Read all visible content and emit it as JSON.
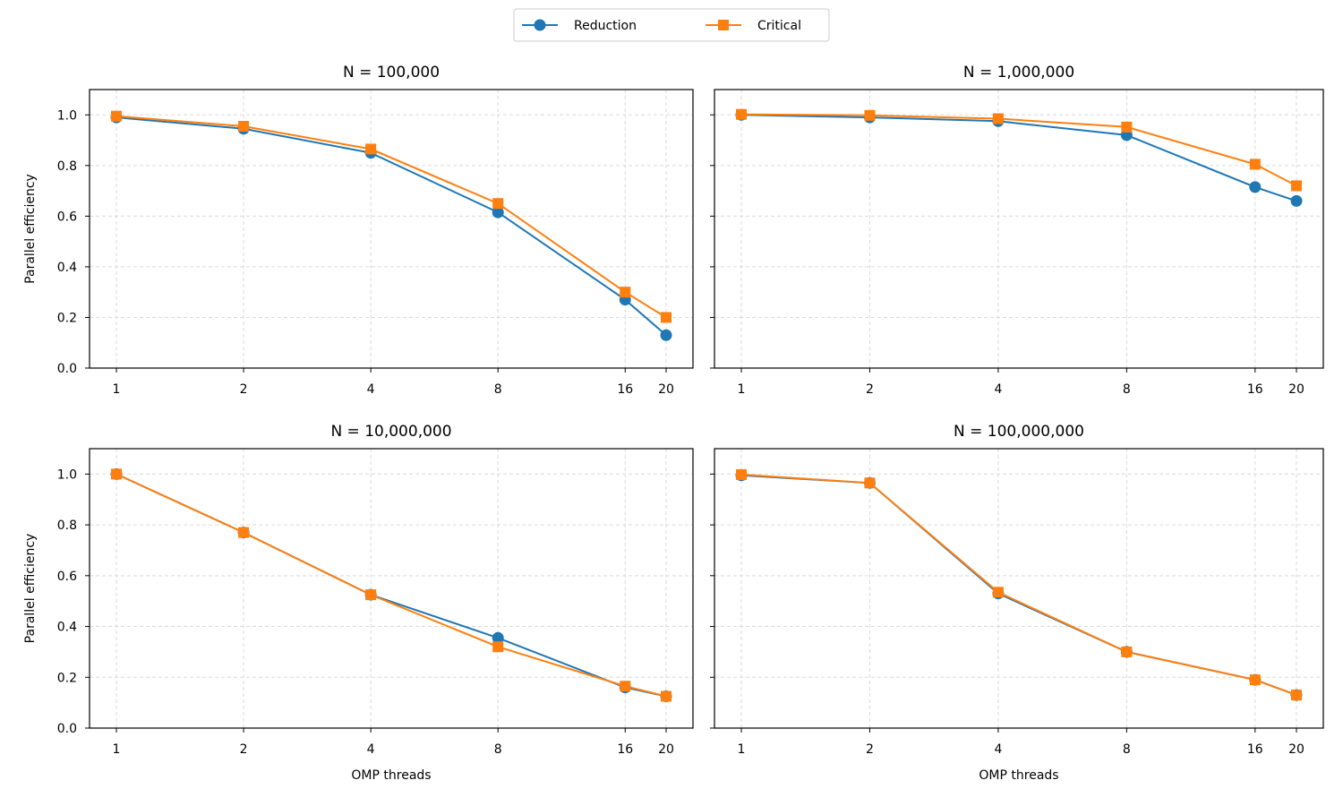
{
  "chart_data": {
    "type": "line",
    "x_scale": "log2",
    "x_ticks": [
      1,
      2,
      4,
      8,
      16,
      20
    ],
    "x_tick_labels": [
      "1",
      "2",
      "4",
      "8",
      "16",
      "20"
    ],
    "ylim": [
      0,
      1.1
    ],
    "y_ticks": [
      0,
      0.2,
      0.4,
      0.6,
      0.8,
      1.0
    ],
    "y_tick_labels": [
      "0.0",
      "0.2",
      "0.4",
      "0.6",
      "0.8",
      "1.0"
    ],
    "grid": true,
    "sharey": true,
    "xlabel": "OMP threads",
    "ylabel": "Parallel efficiency",
    "legend": {
      "placement": "top-center",
      "entries": [
        {
          "name": "Reduction",
          "color": "#1f77b4",
          "marker": "circle"
        },
        {
          "name": "Critical",
          "color": "#ff7f0e",
          "marker": "square"
        }
      ]
    },
    "panels": [
      {
        "title": "N = 100,000",
        "x": [
          1,
          2,
          4,
          8,
          16,
          20
        ],
        "series": [
          {
            "name": "Reduction",
            "values": [
              0.99,
              0.945,
              0.85,
              0.615,
              0.27,
              0.13
            ]
          },
          {
            "name": "Critical",
            "values": [
              0.995,
              0.955,
              0.865,
              0.65,
              0.3,
              0.2
            ]
          }
        ]
      },
      {
        "title": "N = 1,000,000",
        "x": [
          1,
          2,
          4,
          8,
          16,
          20
        ],
        "series": [
          {
            "name": "Reduction",
            "values": [
              1.0,
              0.99,
              0.975,
              0.92,
              0.715,
              0.66
            ]
          },
          {
            "name": "Critical",
            "values": [
              1.002,
              0.998,
              0.985,
              0.952,
              0.805,
              0.72
            ]
          }
        ]
      },
      {
        "title": "N = 10,000,000",
        "x": [
          1,
          2,
          4,
          8,
          16,
          20
        ],
        "series": [
          {
            "name": "Reduction",
            "values": [
              1.0,
              0.77,
              0.525,
              0.355,
              0.16,
              0.125
            ]
          },
          {
            "name": "Critical",
            "values": [
              1.0,
              0.77,
              0.525,
              0.32,
              0.165,
              0.125
            ]
          }
        ]
      },
      {
        "title": "N = 100,000,000",
        "x": [
          1,
          2,
          4,
          8,
          16,
          20
        ],
        "series": [
          {
            "name": "Reduction",
            "values": [
              0.995,
              0.965,
              0.53,
              0.3,
              0.19,
              0.13
            ]
          },
          {
            "name": "Critical",
            "values": [
              0.998,
              0.965,
              0.535,
              0.3,
              0.19,
              0.13
            ]
          }
        ]
      }
    ]
  }
}
